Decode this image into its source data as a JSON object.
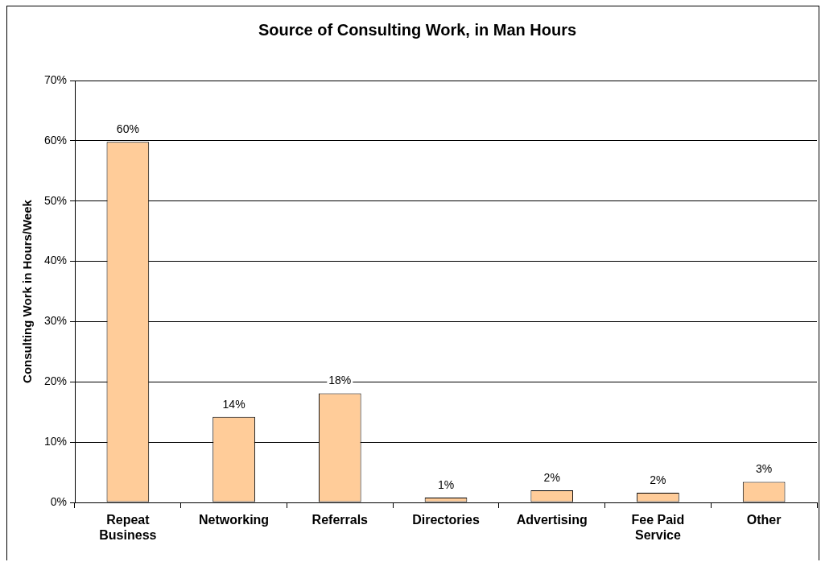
{
  "chart_data": {
    "type": "bar",
    "title": "Source of Consulting Work, in Man Hours",
    "ylabel": "Consulting Work in Hours/Week",
    "categories": [
      "Repeat Business",
      "Networking",
      "Referrals",
      "Directories",
      "Advertising",
      "Fee Paid Service",
      "Other"
    ],
    "values": [
      59.8,
      14.2,
      18.1,
      0.8,
      2.0,
      1.6,
      3.4
    ],
    "color": "#ffcc99",
    "value_labels": [
      "60%",
      "14%",
      "18%",
      "1%",
      "2%",
      "2%",
      "3%"
    ],
    "ylim": [
      0,
      70
    ],
    "yticks": [
      {
        "value": 0,
        "label": "0%"
      },
      {
        "value": 10,
        "label": "10%"
      },
      {
        "value": 20,
        "label": "20%"
      },
      {
        "value": 30,
        "label": "30%"
      },
      {
        "value": 40,
        "label": "40%"
      },
      {
        "value": 50,
        "label": "50%"
      },
      {
        "value": 60,
        "label": "60%"
      },
      {
        "value": 70,
        "label": "70%"
      }
    ],
    "grid": "y"
  }
}
